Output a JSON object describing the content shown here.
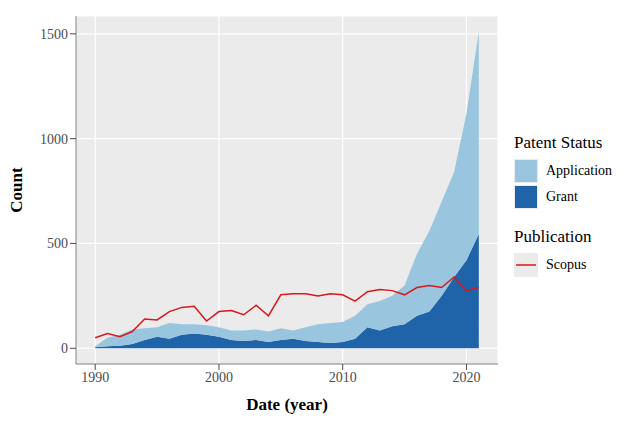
{
  "chart_data": {
    "type": "area",
    "x_label": "Date (year)",
    "y_label": "Count",
    "x": [
      1990,
      1991,
      1992,
      1993,
      1994,
      1995,
      1996,
      1997,
      1998,
      1999,
      2000,
      2001,
      2002,
      2003,
      2004,
      2005,
      2006,
      2007,
      2008,
      2009,
      2010,
      2011,
      2012,
      2013,
      2014,
      2015,
      2016,
      2017,
      2018,
      2019,
      2020,
      2021
    ],
    "series": [
      {
        "name": "Application",
        "legend_group": "Patent Status",
        "type": "area",
        "color": "#9ac5df",
        "values": [
          5,
          40,
          53,
          70,
          55,
          45,
          75,
          50,
          45,
          45,
          45,
          45,
          50,
          50,
          50,
          55,
          40,
          65,
          85,
          95,
          95,
          110,
          110,
          140,
          145,
          185,
          295,
          385,
          450,
          500,
          700,
          965
        ]
      },
      {
        "name": "Grant",
        "legend_group": "Patent Status",
        "type": "area",
        "color": "#1f64a8",
        "values": [
          5,
          10,
          12,
          20,
          40,
          55,
          45,
          65,
          70,
          65,
          55,
          40,
          35,
          40,
          30,
          40,
          45,
          35,
          30,
          25,
          30,
          45,
          100,
          85,
          105,
          115,
          155,
          175,
          250,
          340,
          420,
          545
        ]
      },
      {
        "name": "Scopus",
        "legend_group": "Publication",
        "type": "line",
        "color": "#d7191c",
        "values": [
          50,
          70,
          55,
          80,
          140,
          135,
          175,
          195,
          200,
          130,
          175,
          180,
          160,
          205,
          155,
          255,
          260,
          260,
          250,
          260,
          255,
          225,
          270,
          280,
          275,
          255,
          290,
          300,
          290,
          340,
          275,
          290
        ]
      }
    ],
    "xlim": [
      1988.45,
      2022.55
    ],
    "xticks": [
      1990,
      2000,
      2010,
      2020
    ],
    "ylim": [
      -75,
      1585
    ],
    "yticks": [
      0,
      500,
      1000,
      1500
    ],
    "grid": true,
    "stacked": true,
    "legend": "right"
  }
}
